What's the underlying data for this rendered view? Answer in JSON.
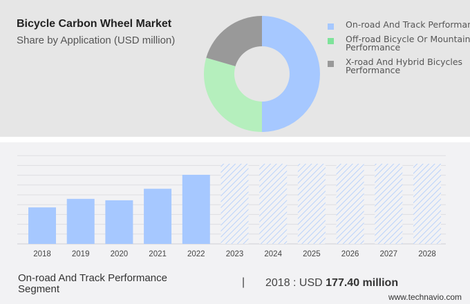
{
  "title": "Bicycle Carbon Wheel Market",
  "subtitle": "Share by Application (USD million)",
  "chart_data": [
    {
      "type": "pie",
      "donut": true,
      "categories": [
        "On-road And Track Performance",
        "Off-road Bicycle Or Mountain Performance",
        "X-road And Hybrid Bicycles Performance"
      ],
      "values": [
        50,
        29.5,
        20.5
      ],
      "colors": [
        "#a6c8ff",
        "#b5efbd",
        "#999999"
      ],
      "legend_position": "right"
    },
    {
      "type": "bar",
      "categories": [
        "2018",
        "2019",
        "2020",
        "2021",
        "2022",
        "2023",
        "2024",
        "2025",
        "2026",
        "2027",
        "2028"
      ],
      "values": [
        177.4,
        219,
        212,
        268,
        336,
        null,
        null,
        null,
        null,
        null,
        null
      ],
      "forecast": [
        "2023",
        "2024",
        "2025",
        "2026",
        "2027",
        "2028"
      ],
      "forecast_style": "hatched",
      "color": "#a6c8ff",
      "grid": true,
      "ylim": [
        0,
        430
      ]
    }
  ],
  "footer": {
    "segment": "On-road And Track Performance Segment",
    "separator": "|",
    "value_prefix": "2018 : USD ",
    "value": "177.40 million",
    "source": "www.technavio.com"
  }
}
